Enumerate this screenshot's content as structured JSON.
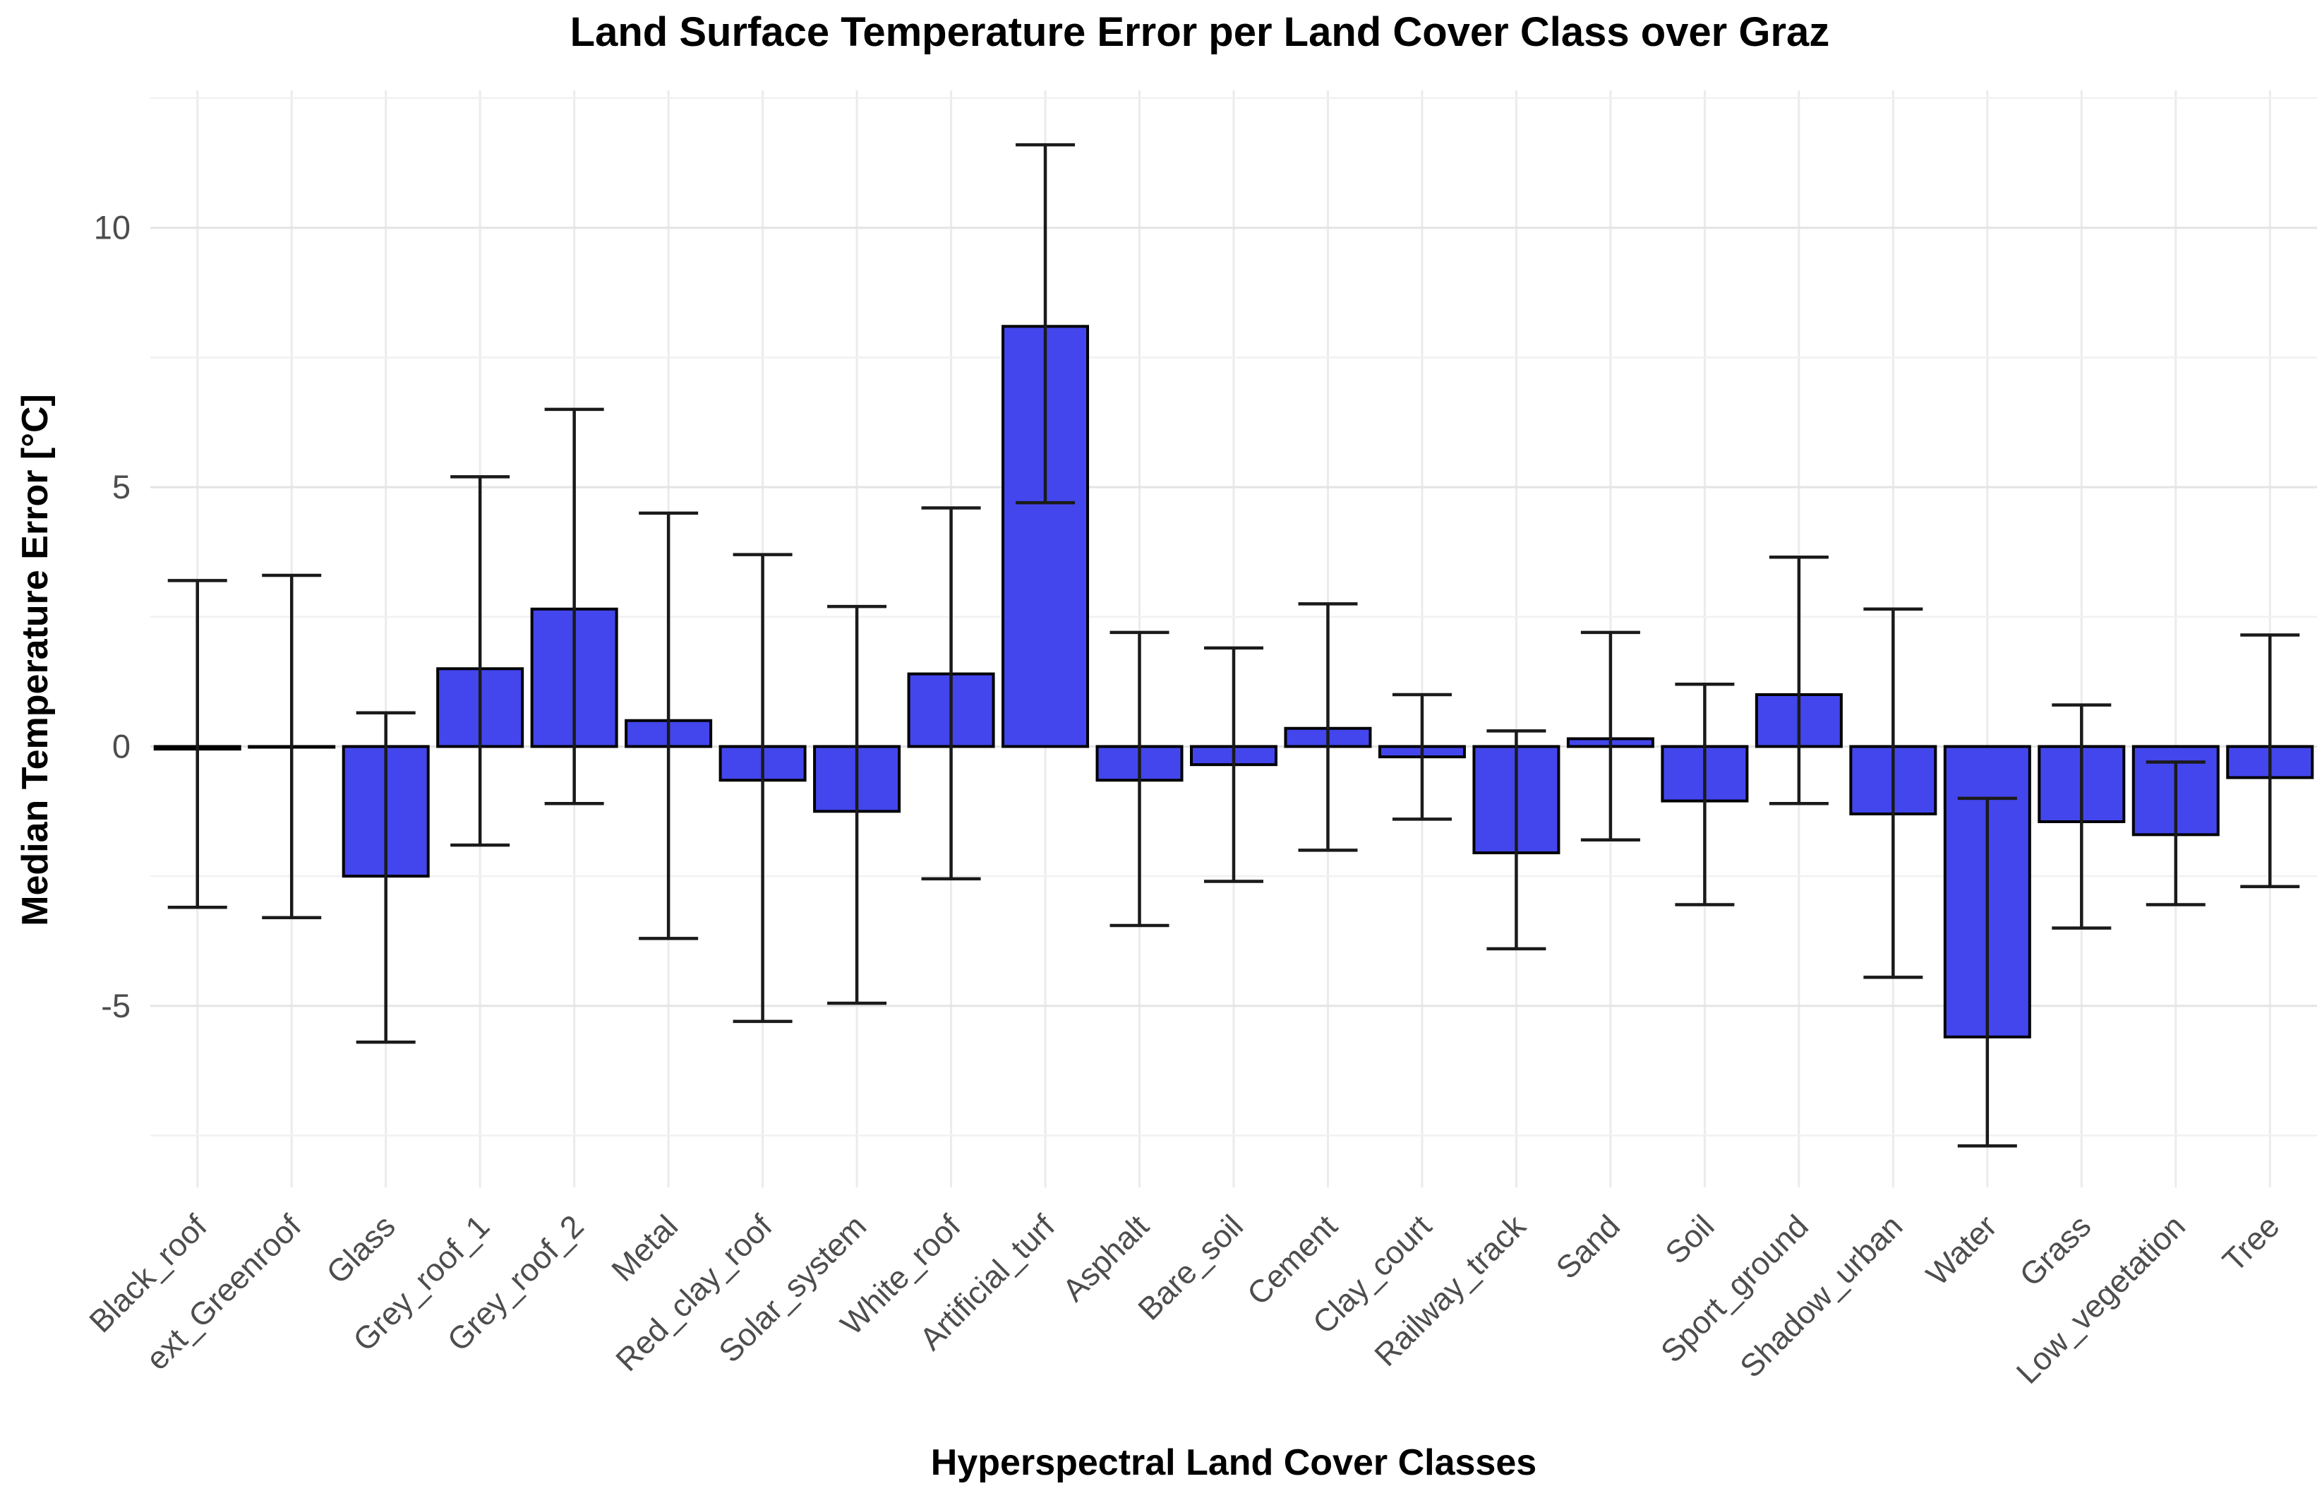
{
  "chart_data": {
    "type": "bar",
    "title": "Land Surface Temperature Error per Land Cover Class over Graz",
    "xlabel": "Hyperspectral Land Cover Classes",
    "ylabel": "Median Temperature Error [°C]",
    "categories": [
      "Black_roof",
      "ext_Greenroof",
      "Glass",
      "Grey_roof_1",
      "Grey_roof_2",
      "Metal",
      "Red_clay_roof",
      "Solar_system",
      "White_roof",
      "Artificial_turf",
      "Asphalt",
      "Bare_soil",
      "Cement",
      "Clay_court",
      "Railway_track",
      "Sand",
      "Soil",
      "Sport_ground",
      "Shadow_urban",
      "Water",
      "Grass",
      "Low_vegetation",
      "Tree"
    ],
    "values": [
      -0.05,
      0.0,
      -2.5,
      1.5,
      2.65,
      0.5,
      -0.65,
      -1.25,
      1.4,
      8.1,
      -0.65,
      -0.35,
      0.35,
      -0.2,
      -2.05,
      0.15,
      -1.05,
      1.0,
      -1.3,
      -5.6,
      -1.45,
      -1.7,
      -0.6
    ],
    "error_low": [
      -3.1,
      -3.3,
      -5.7,
      -1.9,
      -1.1,
      -3.7,
      -5.3,
      -4.95,
      -2.55,
      4.7,
      -3.45,
      -2.6,
      -2.0,
      -1.4,
      -3.9,
      -1.8,
      -3.05,
      -1.1,
      -4.45,
      -7.7,
      -3.5,
      -3.05,
      -2.7
    ],
    "error_high": [
      3.2,
      3.3,
      0.65,
      5.2,
      6.5,
      4.5,
      3.7,
      2.7,
      4.6,
      11.6,
      2.2,
      1.9,
      2.75,
      1.0,
      0.3,
      2.2,
      1.2,
      3.65,
      2.65,
      -1.0,
      0.8,
      -0.3,
      2.15
    ],
    "y_ticks": [
      -5,
      0,
      5,
      10
    ],
    "y_tick_labels": [
      "-5",
      "0",
      "5",
      "10"
    ],
    "y_minor_ticks": [
      -7.5,
      -2.5,
      2.5,
      7.5,
      12.5
    ],
    "ylim": [
      -8.5,
      12.65
    ],
    "grid": true,
    "legend": false,
    "bar_orientation": "vertical",
    "x_label_rotation_deg": 45,
    "colors": {
      "bar_fill": "#4346EC",
      "bar_stroke": "#000000",
      "error_bar": "#1a1a1a",
      "grid_major": "#e4e4e4",
      "grid_minor": "#f1f1f1",
      "grid_vertical": "#ebebeb",
      "axis_text": "#4d4d4d",
      "title_text": "#000000",
      "background": "#ffffff"
    }
  }
}
